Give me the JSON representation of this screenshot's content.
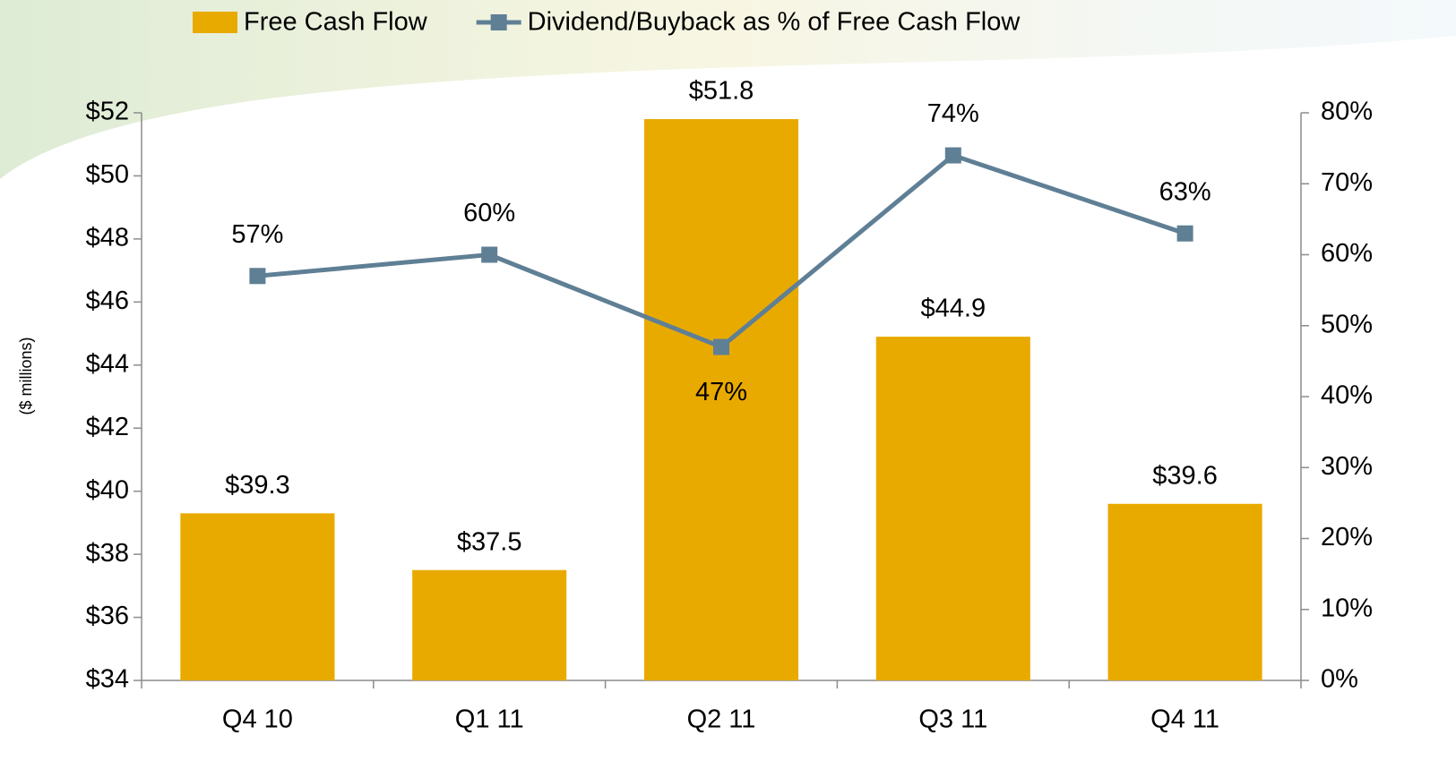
{
  "chart_data": {
    "type": "combo",
    "y_label": "($ millions)",
    "categories": [
      "Q4 10",
      "Q1 11",
      "Q2 11",
      "Q3 11",
      "Q4 11"
    ],
    "series": [
      {
        "name": "Free Cash Flow",
        "type": "bar",
        "axis": "y",
        "color": "#e9aa00",
        "values": [
          39.3,
          37.5,
          51.8,
          44.9,
          39.6
        ],
        "value_labels": [
          "$39.3",
          "$37.5",
          "$51.8",
          "$44.9",
          "$39.6"
        ]
      },
      {
        "name": "Dividend/Buyback as % of Free Cash Flow",
        "type": "line",
        "axis": "y2",
        "color": "#5f7f95",
        "values": [
          57,
          60,
          47,
          74,
          63
        ],
        "value_labels": [
          "57%",
          "60%",
          "47%",
          "74%",
          "63%"
        ]
      }
    ],
    "ylim": [
      34,
      52
    ],
    "yticks": [
      {
        "value": 34,
        "label": "$34"
      },
      {
        "value": 36,
        "label": "$36"
      },
      {
        "value": 38,
        "label": "$38"
      },
      {
        "value": 40,
        "label": "$40"
      },
      {
        "value": 42,
        "label": "$42"
      },
      {
        "value": 44,
        "label": "$44"
      },
      {
        "value": 46,
        "label": "$46"
      },
      {
        "value": 48,
        "label": "$48"
      },
      {
        "value": 50,
        "label": "$50"
      },
      {
        "value": 52,
        "label": "$52"
      }
    ],
    "y2lim": [
      0,
      80
    ],
    "y2ticks": [
      {
        "value": 0,
        "label": "0%"
      },
      {
        "value": 10,
        "label": "10%"
      },
      {
        "value": 20,
        "label": "20%"
      },
      {
        "value": 30,
        "label": "30%"
      },
      {
        "value": 40,
        "label": "40%"
      },
      {
        "value": 50,
        "label": "50%"
      },
      {
        "value": 60,
        "label": "60%"
      },
      {
        "value": 70,
        "label": "70%"
      },
      {
        "value": 80,
        "label": "80%"
      }
    ],
    "legend": "top"
  }
}
